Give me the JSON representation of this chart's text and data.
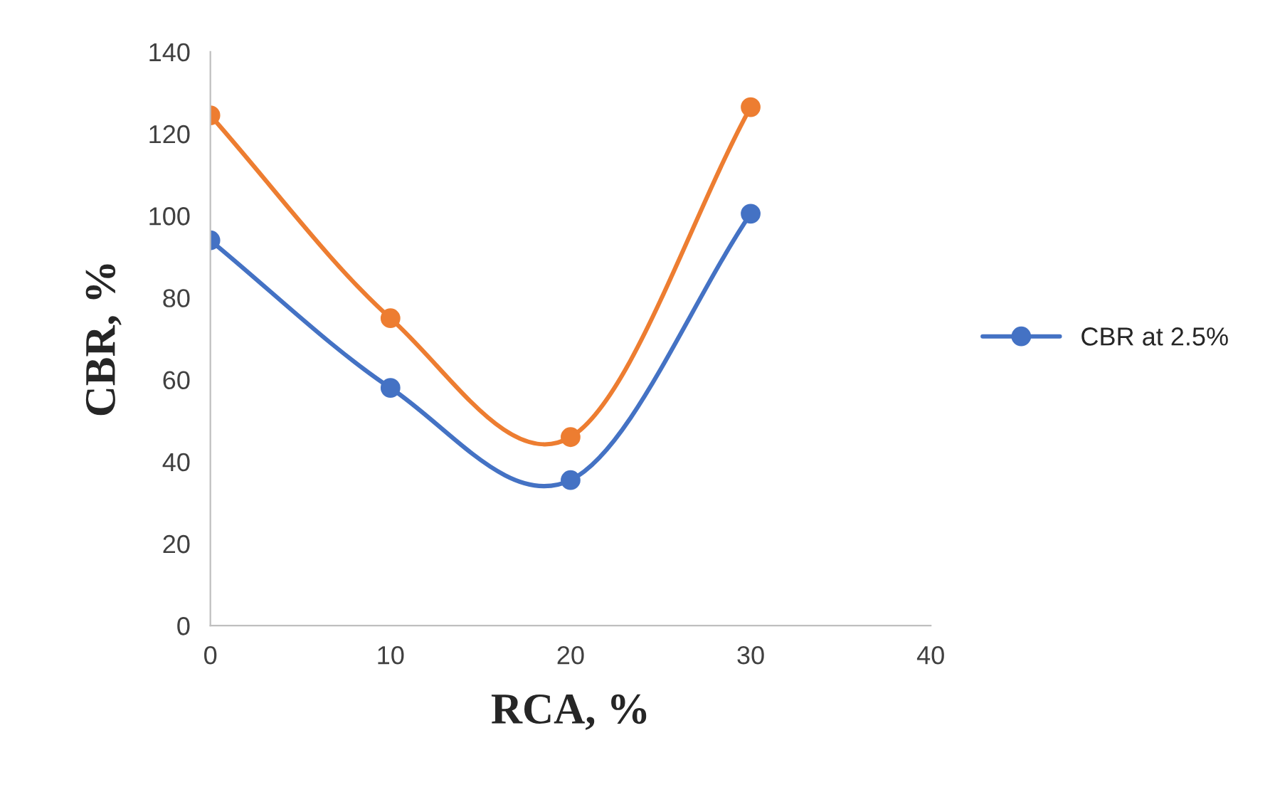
{
  "chart_data": {
    "type": "line",
    "xlabel": "RCA, %",
    "ylabel": "CBR, %",
    "x": [
      0,
      10,
      20,
      30
    ],
    "series": [
      {
        "name": "CBR at 2.5%",
        "color": "#4472c4",
        "values": [
          94,
          58,
          35.5,
          100.5
        ]
      },
      {
        "color": "#ed7d31",
        "values": [
          124.5,
          75,
          46,
          126.5
        ]
      }
    ],
    "xlim": [
      0,
      40
    ],
    "xticks": [
      0,
      10,
      20,
      30,
      40
    ],
    "ylim": [
      0,
      140
    ],
    "yticks": [
      0,
      20,
      40,
      60,
      80,
      100,
      120,
      140
    ],
    "grid": false,
    "legend": "right",
    "marker": "circle",
    "line_style": "solid"
  }
}
